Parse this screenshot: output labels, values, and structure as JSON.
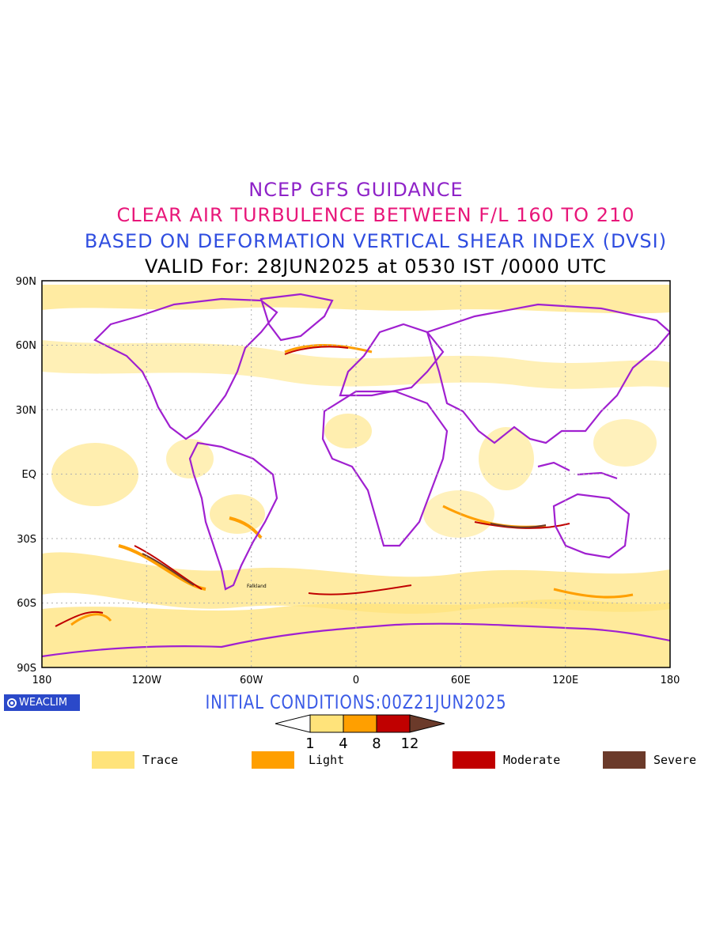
{
  "titles": {
    "line1": "NCEP GFS GUIDANCE",
    "line2": "CLEAR AIR TURBULENCE BETWEEN F/L 160 TO 210",
    "line3": "BASED ON DEFORMATION VERTICAL SHEAR INDEX (DVSI)",
    "line4": "VALID For: 28JUN2025 at 0530 IST /0000 UTC"
  },
  "axes": {
    "lat_labels": [
      "90N",
      "60N",
      "30N",
      "EQ",
      "30S",
      "60S",
      "90S"
    ],
    "lon_labels": [
      "180",
      "120W",
      "60W",
      "0",
      "60E",
      "120E",
      "180"
    ]
  },
  "logo": {
    "text": "WEACLIM",
    "icon": "weaclim-logo-icon"
  },
  "initial_conditions": "INITIAL CONDITIONS:00Z21JUN2025",
  "colorbar": {
    "ticks": [
      "1",
      "4",
      "8",
      "12"
    ],
    "colors": [
      "#ffffff",
      "#ffe37a",
      "#ff9f00",
      "#c00000",
      "#6b3a2a"
    ]
  },
  "legend": [
    {
      "label": "Trace",
      "color": "#ffe37a"
    },
    {
      "label": "Light",
      "color": "#ff9f00"
    },
    {
      "label": "Moderate",
      "color": "#c00000"
    },
    {
      "label": "Severe",
      "color": "#6b3a2a"
    }
  ],
  "place_labels": [
    "Falkland"
  ],
  "colors": {
    "coastline": "#a020d0",
    "grid": "#b0b0b0",
    "title_purple": "#8e22c8",
    "title_pink": "#e8177a",
    "title_blue": "#2f4de0"
  }
}
